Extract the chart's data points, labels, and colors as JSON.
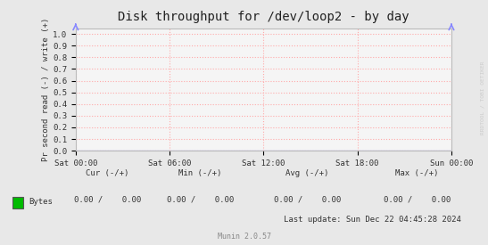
{
  "title": "Disk throughput for /dev/loop2 - by day",
  "ylabel": "Pr second read (-) / write (+)",
  "background_color": "#e8e8e8",
  "plot_bg_color": "#f5f5f5",
  "grid_color": "#ffaaaa",
  "border_color": "#bbbbbb",
  "ylim": [
    0.0,
    1.05
  ],
  "yticks": [
    0.0,
    0.1,
    0.2,
    0.3,
    0.4,
    0.5,
    0.6,
    0.7,
    0.8,
    0.9,
    1.0
  ],
  "xtick_labels": [
    "Sat 00:00",
    "Sat 06:00",
    "Sat 12:00",
    "Sat 18:00",
    "Sun 00:00"
  ],
  "legend_label": "Bytes",
  "legend_color": "#00bb00",
  "line_color": "#0000cc",
  "arrow_color": "#8888ff",
  "watermark": "RRDTOOL / TOBI OETIKER",
  "munin_version": "Munin 2.0.57",
  "last_update": "Last update: Sun Dec 22 04:45:28 2024",
  "x_data": [
    0,
    1
  ],
  "y_data": [
    0,
    0
  ],
  "footer_labels": [
    "Cur (-/+)",
    "Min (-/+)",
    "Avg (-/+)",
    "Max (-/+)"
  ],
  "footer_values": [
    "0.00 /    0.00",
    "0.00 /    0.00",
    "0.00 /    0.00",
    "0.00 /    0.00"
  ]
}
